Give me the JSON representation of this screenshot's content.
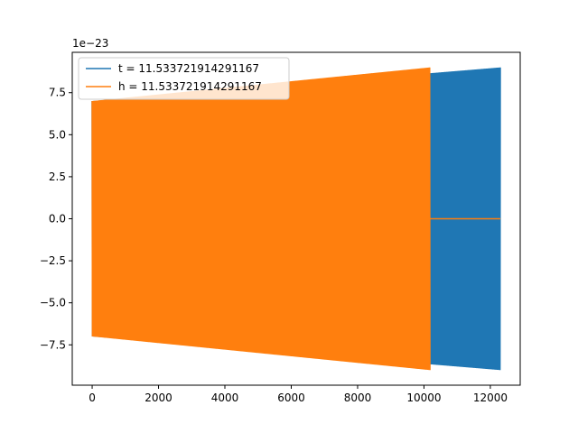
{
  "chart_data": {
    "type": "line",
    "title": "",
    "xlabel": "",
    "ylabel": "",
    "y_offset_label": "1e−23",
    "xlim": [
      -600,
      12900
    ],
    "ylim": [
      -9.9,
      9.9
    ],
    "xticks": [
      0,
      2000,
      4000,
      6000,
      8000,
      10000,
      12000
    ],
    "xtick_labels": [
      "0",
      "2000",
      "4000",
      "6000",
      "8000",
      "10000",
      "12000"
    ],
    "yticks": [
      -7.5,
      -5.0,
      -2.5,
      0.0,
      2.5,
      5.0,
      7.5
    ],
    "ytick_labels": [
      "−7.5",
      "−5.0",
      "−2.5",
      "0.0",
      "2.5",
      "5.0",
      "7.5"
    ],
    "grid": false,
    "legend_position": "upper-left",
    "series": [
      {
        "name": "t = 11.533721914291167",
        "color": "#1f77b4",
        "x_start": 0,
        "x_end": 12300,
        "flat_from_x": 12300,
        "amplitude_start": 7.0,
        "amplitude_end": 9.0
      },
      {
        "name": "h = 11.533721914291167",
        "color": "#ff7f0e",
        "x_start": 0,
        "x_end": 10180,
        "flat_from_x": 10180,
        "flat_until_x": 12300,
        "amplitude_start": 7.0,
        "amplitude_end": 9.0
      }
    ]
  }
}
